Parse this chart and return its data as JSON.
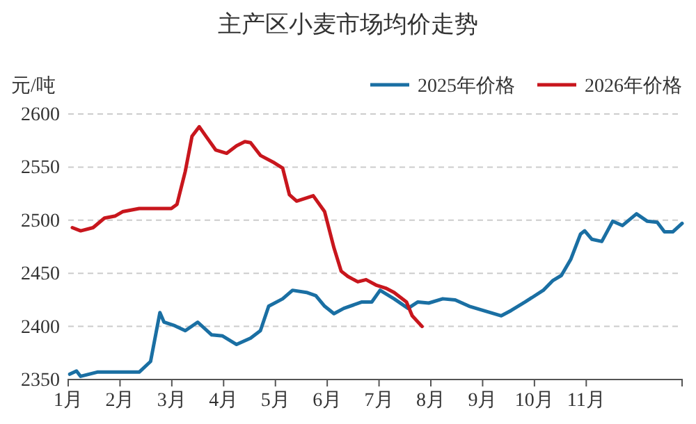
{
  "chart_data": {
    "type": "line",
    "title": "主产区小麦市场均价走势",
    "ylabel": "元/吨",
    "xlim": [
      1,
      12.85
    ],
    "xticks": [
      {
        "value": 1,
        "label": "1月"
      },
      {
        "value": 2,
        "label": "2月"
      },
      {
        "value": 3,
        "label": "3月"
      },
      {
        "value": 4,
        "label": "4月"
      },
      {
        "value": 5,
        "label": "5月"
      },
      {
        "value": 6,
        "label": "6月"
      },
      {
        "value": 7,
        "label": "7月"
      },
      {
        "value": 8,
        "label": "8月"
      },
      {
        "value": 9,
        "label": "9月"
      },
      {
        "value": 10,
        "label": "10月"
      },
      {
        "value": 11,
        "label": "11月"
      }
    ],
    "ylim": [
      2350,
      2600
    ],
    "yticks": [
      2350,
      2400,
      2450,
      2500,
      2550,
      2600
    ],
    "grid": "y",
    "legend": "top right",
    "marker": "none",
    "line_style": "solid",
    "series": [
      {
        "name": "2025年价格",
        "color": "#1a6fa3",
        "x": [
          1.03,
          1.16,
          1.24,
          1.56,
          2.37,
          2.59,
          2.77,
          2.85,
          3.04,
          3.26,
          3.5,
          3.77,
          3.98,
          4.25,
          4.52,
          4.71,
          4.87,
          5.14,
          5.33,
          5.6,
          5.78,
          5.95,
          6.13,
          6.32,
          6.67,
          6.86,
          7.02,
          7.29,
          7.56,
          7.75,
          7.96,
          8.23,
          8.47,
          8.74,
          9.01,
          9.36,
          9.55,
          9.82,
          10.17,
          10.35,
          10.52,
          10.7,
          10.89,
          10.97,
          11.11,
          11.3,
          11.51,
          11.7,
          11.97,
          12.18,
          12.37,
          12.51,
          12.67,
          12.85
        ],
        "values": [
          2355,
          2358,
          2353,
          2357,
          2357,
          2367,
          2413,
          2404,
          2401,
          2396,
          2404,
          2392,
          2391,
          2383,
          2389,
          2396,
          2419,
          2426,
          2434,
          2432,
          2429,
          2419,
          2412,
          2417,
          2423,
          2423,
          2434,
          2426,
          2417,
          2423,
          2422,
          2426,
          2425,
          2419,
          2415,
          2410,
          2415,
          2423,
          2434,
          2443,
          2448,
          2463,
          2487,
          2490,
          2482,
          2480,
          2499,
          2495,
          2506,
          2499,
          2498,
          2489,
          2489,
          2497
        ]
      },
      {
        "name": "2026年价格",
        "color": "#c8161d",
        "x": [
          1.08,
          1.24,
          1.48,
          1.7,
          1.91,
          2.05,
          2.37,
          2.99,
          3.1,
          3.26,
          3.39,
          3.53,
          3.66,
          3.85,
          4.06,
          4.25,
          4.41,
          4.52,
          4.71,
          4.98,
          5.14,
          5.27,
          5.41,
          5.73,
          5.95,
          6.13,
          6.27,
          6.4,
          6.59,
          6.75,
          6.94,
          7.13,
          7.29,
          7.53,
          7.64,
          7.83
        ],
        "values": [
          2493,
          2490,
          2493,
          2502,
          2504,
          2508,
          2511,
          2511,
          2515,
          2546,
          2579,
          2588,
          2579,
          2566,
          2563,
          2570,
          2574,
          2573,
          2561,
          2554,
          2549,
          2524,
          2518,
          2523,
          2508,
          2474,
          2452,
          2447,
          2442,
          2444,
          2439,
          2436,
          2432,
          2423,
          2410,
          2400
        ]
      }
    ]
  }
}
